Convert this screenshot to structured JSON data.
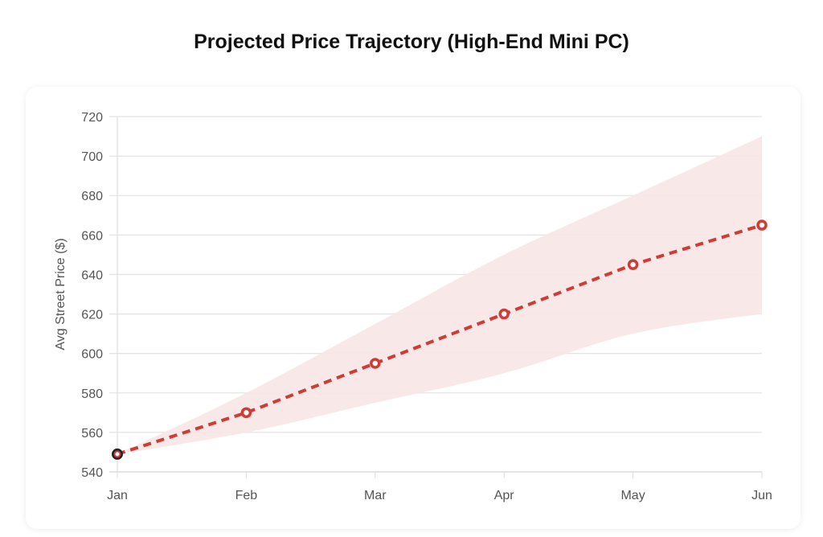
{
  "chart_data": {
    "type": "line",
    "title": "Projected Price Trajectory (High-End Mini PC)",
    "xlabel": "",
    "ylabel": "Avg Street Price ($)",
    "categories": [
      "Jan",
      "Feb",
      "Mar",
      "Apr",
      "May",
      "Jun"
    ],
    "series": [
      {
        "values": [
          549,
          570,
          595,
          620,
          645,
          665
        ],
        "color": "#d03b35",
        "style": "dashed"
      }
    ],
    "band": {
      "upper": [
        549,
        580,
        615,
        650,
        680,
        710
      ],
      "lower": [
        549,
        560,
        575,
        590,
        610,
        620
      ],
      "color": "#f8e6e5"
    },
    "ylim": [
      540,
      720
    ],
    "yticks": [
      540,
      560,
      580,
      600,
      620,
      640,
      660,
      680,
      700,
      720
    ],
    "grid": true
  }
}
